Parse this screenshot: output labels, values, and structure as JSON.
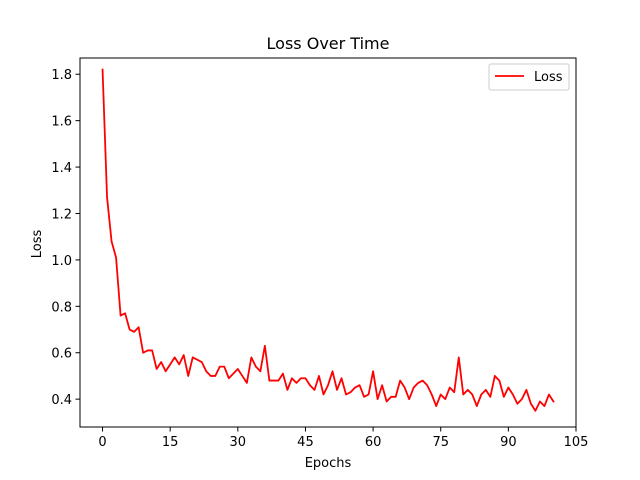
{
  "chart_data": {
    "type": "line",
    "title": "Loss Over Time",
    "xlabel": "Epochs",
    "ylabel": "Loss",
    "xlim": [
      -5,
      105
    ],
    "ylim": [
      0.28,
      1.87
    ],
    "xticks": [
      0,
      15,
      30,
      45,
      60,
      75,
      90,
      105
    ],
    "xtick_labels": [
      "0",
      "15",
      "30",
      "45",
      "60",
      "75",
      "90",
      "105"
    ],
    "yticks": [
      0.4,
      0.6,
      0.8,
      1.0,
      1.2,
      1.4,
      1.6,
      1.8
    ],
    "ytick_labels": [
      "0.4",
      "0.6",
      "0.8",
      "1.0",
      "1.2",
      "1.4",
      "1.6",
      "1.8"
    ],
    "grid": false,
    "legend_position": "top-right",
    "series": [
      {
        "name": "Loss",
        "color": "#ff0000",
        "x": [
          0,
          1,
          2,
          3,
          4,
          5,
          6,
          7,
          8,
          9,
          10,
          11,
          12,
          13,
          14,
          15,
          16,
          17,
          18,
          19,
          20,
          21,
          22,
          23,
          24,
          25,
          26,
          27,
          28,
          29,
          30,
          31,
          32,
          33,
          34,
          35,
          36,
          37,
          38,
          39,
          40,
          41,
          42,
          43,
          44,
          45,
          46,
          47,
          48,
          49,
          50,
          51,
          52,
          53,
          54,
          55,
          56,
          57,
          58,
          59,
          60,
          61,
          62,
          63,
          64,
          65,
          66,
          67,
          68,
          69,
          70,
          71,
          72,
          73,
          74,
          75,
          76,
          77,
          78,
          79,
          80,
          81,
          82,
          83,
          84,
          85,
          86,
          87,
          88,
          89,
          90,
          91,
          92,
          93,
          94,
          95,
          96,
          97,
          98,
          99,
          100
        ],
        "y": [
          1.82,
          1.27,
          1.08,
          1.01,
          0.76,
          0.77,
          0.7,
          0.69,
          0.71,
          0.6,
          0.61,
          0.61,
          0.53,
          0.56,
          0.52,
          0.55,
          0.58,
          0.55,
          0.59,
          0.5,
          0.58,
          0.57,
          0.56,
          0.52,
          0.5,
          0.5,
          0.54,
          0.54,
          0.49,
          0.51,
          0.53,
          0.5,
          0.47,
          0.58,
          0.54,
          0.52,
          0.63,
          0.48,
          0.48,
          0.48,
          0.51,
          0.44,
          0.49,
          0.47,
          0.49,
          0.49,
          0.46,
          0.44,
          0.5,
          0.42,
          0.46,
          0.52,
          0.44,
          0.49,
          0.42,
          0.43,
          0.45,
          0.46,
          0.41,
          0.42,
          0.52,
          0.4,
          0.46,
          0.39,
          0.41,
          0.41,
          0.48,
          0.45,
          0.4,
          0.45,
          0.47,
          0.48,
          0.46,
          0.42,
          0.37,
          0.42,
          0.4,
          0.45,
          0.43,
          0.58,
          0.42,
          0.44,
          0.42,
          0.37,
          0.42,
          0.44,
          0.41,
          0.5,
          0.48,
          0.41,
          0.45,
          0.42,
          0.38,
          0.4,
          0.44,
          0.38,
          0.35,
          0.39,
          0.37,
          0.42,
          0.39
        ]
      }
    ]
  }
}
